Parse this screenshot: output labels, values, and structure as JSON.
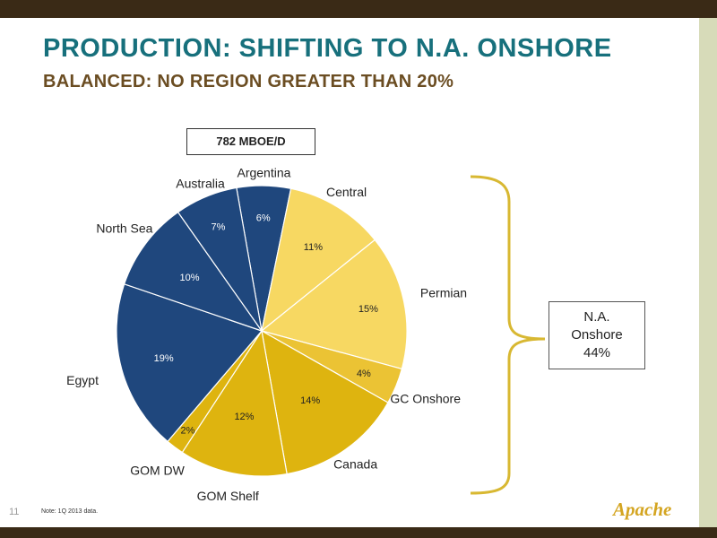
{
  "slide": {
    "title": "PRODUCTION: SHIFTING TO N.A. ONSHORE",
    "subtitle": "BALANCED: NO REGION GREATER THAN 20%",
    "page_number": "11",
    "note": "Note: 1Q 2013 data.",
    "logo_text": "Apache"
  },
  "chart_data": {
    "type": "pie",
    "total_label": "782 MBOE/D",
    "start_angle_deg": -10,
    "direction": "clockwise",
    "slices": [
      {
        "name": "Argentina",
        "value": 6,
        "label": "6%",
        "color": "#1f477d"
      },
      {
        "name": "Central",
        "value": 11,
        "label": "11%",
        "color": "#f7d862"
      },
      {
        "name": "Permian",
        "value": 15,
        "label": "15%",
        "color": "#f7d862"
      },
      {
        "name": "GC Onshore",
        "value": 4,
        "label": "4%",
        "color": "#ebc334"
      },
      {
        "name": "Canada",
        "value": 14,
        "label": "14%",
        "color": "#deb40f"
      },
      {
        "name": "GOM Shelf",
        "value": 12,
        "label": "12%",
        "color": "#deb40f"
      },
      {
        "name": "GOM DW",
        "value": 2,
        "label": "2%",
        "color": "#deb40f"
      },
      {
        "name": "Egypt",
        "value": 19,
        "label": "19%",
        "color": "#1f477d"
      },
      {
        "name": "North Sea",
        "value": 10,
        "label": "10%",
        "color": "#1f477d"
      },
      {
        "name": "Australia",
        "value": 7,
        "label": "7%",
        "color": "#1f477d"
      }
    ],
    "group_annotation": {
      "label_lines": [
        "N.A.",
        "Onshore",
        "44%"
      ],
      "members": [
        "Central",
        "Permian",
        "GC Onshore",
        "Canada"
      ]
    }
  }
}
